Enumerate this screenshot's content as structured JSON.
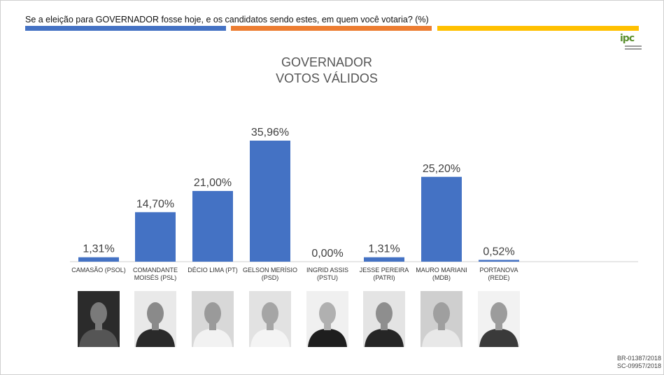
{
  "header": {
    "question": "Se a eleição para GOVERNADOR fosse hoje, e os candidatos sendo estes, em quem você votaria? (%)",
    "stripe_colors": [
      "#4472c4",
      "#ed7d31",
      "#ffc000"
    ]
  },
  "logo": {
    "text": "ipc"
  },
  "chart_data": {
    "type": "bar",
    "title": "GOVERNADOR",
    "subtitle": "VOTOS VÁLIDOS",
    "bar_color": "#4472c4",
    "categories": [
      "CAMASÃO (PSOL)",
      "COMANDANTE\nMOISÉS (PSL)",
      "DÉCIO LIMA (PT)",
      "GELSON MERÍSIO\n(PSD)",
      "INGRID ASSIS\n(PSTU)",
      "JESSE PEREIRA\n(PATRI)",
      "MAURO MARIANI\n(MDB)",
      "PORTANOVA\n(REDE)"
    ],
    "values": [
      1.31,
      14.7,
      21.0,
      35.96,
      0.0,
      1.31,
      25.2,
      0.52
    ],
    "data_labels": [
      "1,31%",
      "14,70%",
      "21,00%",
      "35,96%",
      "0,00%",
      "1,31%",
      "25,20%",
      "0,52%"
    ],
    "ylim": [
      0,
      40
    ],
    "xlabel": "",
    "ylabel": "",
    "grid": false,
    "legend": "none"
  },
  "photos": [
    {
      "name": "camasao-photo",
      "bg": "#2b2b2b",
      "skin": "#7a7a7a",
      "shirt": "#555555"
    },
    {
      "name": "comandante-moises-photo",
      "bg": "#e9e9e9",
      "skin": "#8a8a8a",
      "shirt": "#2a2a2a"
    },
    {
      "name": "decio-lima-photo",
      "bg": "#d8d8d8",
      "skin": "#9a9a9a",
      "shirt": "#f2f2f2"
    },
    {
      "name": "gelson-merisio-photo",
      "bg": "#e2e2e2",
      "skin": "#a5a5a5",
      "shirt": "#f4f4f4"
    },
    {
      "name": "ingrid-assis-photo",
      "bg": "#f0f0f0",
      "skin": "#b0b0b0",
      "shirt": "#1e1e1e"
    },
    {
      "name": "jesse-pereira-photo",
      "bg": "#e4e4e4",
      "skin": "#8e8e8e",
      "shirt": "#262626"
    },
    {
      "name": "mauro-mariani-photo",
      "bg": "#cfcfcf",
      "skin": "#9f9f9f",
      "shirt": "#e8e8e8"
    },
    {
      "name": "portanova-photo",
      "bg": "#f2f2f2",
      "skin": "#9c9c9c",
      "shirt": "#3a3a3a"
    }
  ],
  "footer": {
    "reg1": "BR-01387/2018",
    "reg2": "SC-09957/2018"
  }
}
